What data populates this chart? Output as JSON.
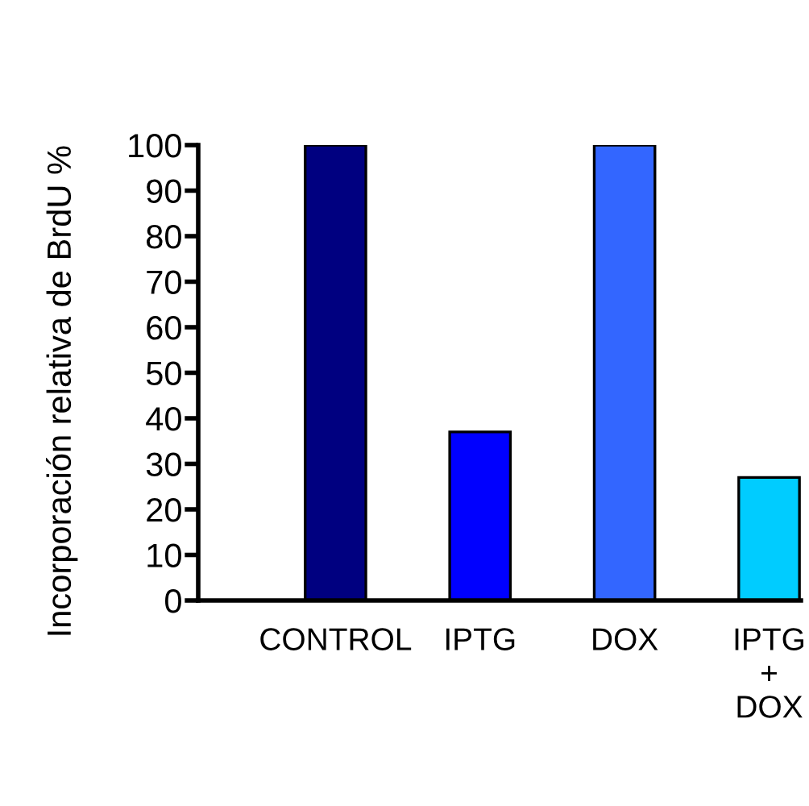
{
  "chart_data": {
    "type": "bar",
    "ylabel": "Incorporación relativa de BrdU %",
    "categories": [
      "CONTROL",
      "IPTG",
      "DOX",
      "IPTG\n+\nDOX"
    ],
    "values": [
      100,
      37,
      100,
      27
    ],
    "colors": [
      "#000080",
      "#0000ff",
      "#3366ff",
      "#00ccff"
    ],
    "ylim": [
      0,
      100
    ],
    "yticks": [
      0,
      10,
      20,
      30,
      40,
      50,
      60,
      70,
      80,
      90,
      100
    ],
    "grid": false,
    "legend": false
  }
}
